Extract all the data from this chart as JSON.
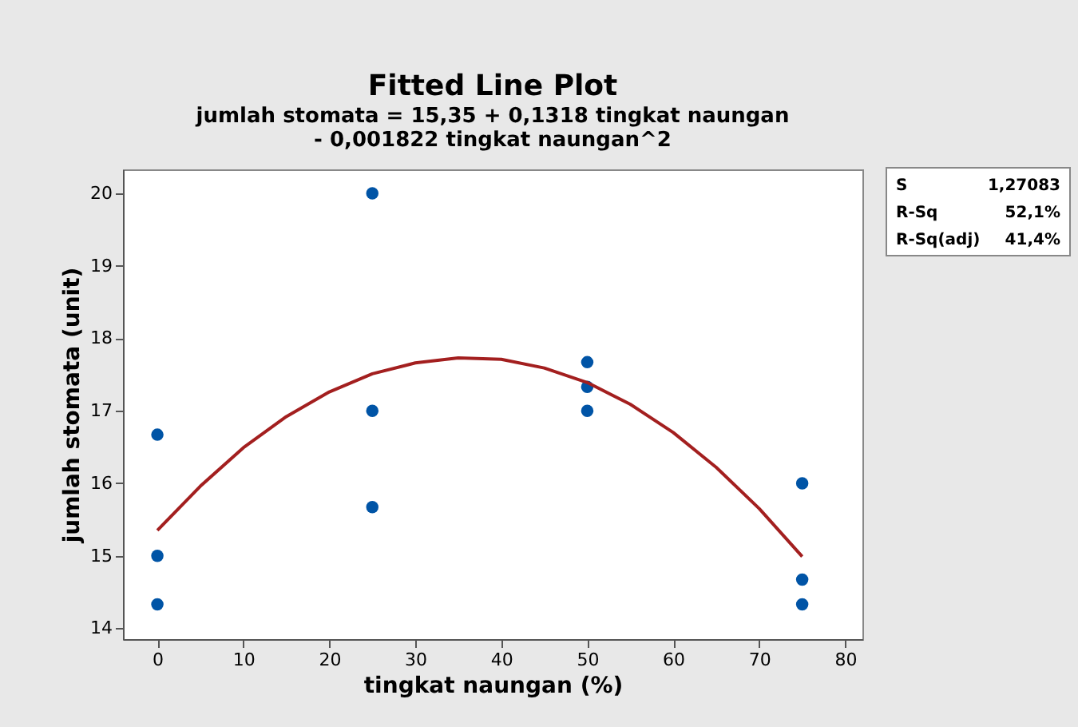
{
  "chart_data": {
    "type": "line",
    "title": "Fitted Line Plot",
    "subtitle": "jumlah stomata = 15,35 + 0,1318 tingkat naungan\n- 0,001822 tingkat naungan^2",
    "xlabel": "tingkat naungan (%)",
    "ylabel": "jumlah stomata (unit)",
    "series": [
      {
        "type": "scatter",
        "marker": "circle",
        "color": "#0054a6",
        "x": [
          0,
          0,
          0,
          25,
          25,
          25,
          50,
          50,
          50,
          75,
          75,
          75
        ],
        "values": [
          16.67,
          15.0,
          14.33,
          20.0,
          17.0,
          15.67,
          17.67,
          17.33,
          17.0,
          16.0,
          14.67,
          14.33
        ]
      },
      {
        "color": "#a31f1f",
        "line_style": "solid",
        "x": [
          0,
          5,
          10,
          15,
          20,
          25,
          30,
          35,
          40,
          45,
          50,
          55,
          60,
          65,
          70,
          75
        ],
        "values": [
          15.35,
          15.96,
          16.49,
          16.92,
          17.26,
          17.51,
          17.66,
          17.73,
          17.71,
          17.59,
          17.39,
          17.09,
          16.7,
          16.22,
          15.65,
          14.99
        ]
      }
    ],
    "xlim": [
      -4,
      82
    ],
    "ylim": [
      13.85,
      20.33
    ],
    "xticks": [
      0,
      10,
      20,
      30,
      40,
      50,
      60,
      70,
      80
    ],
    "yticks": [
      14,
      15,
      16,
      17,
      18,
      19,
      20
    ],
    "grid": false,
    "annotations": [
      "S",
      "1,27083",
      "R-Sq",
      "52,1%",
      "R-Sq(adj)",
      "41,4%"
    ]
  }
}
